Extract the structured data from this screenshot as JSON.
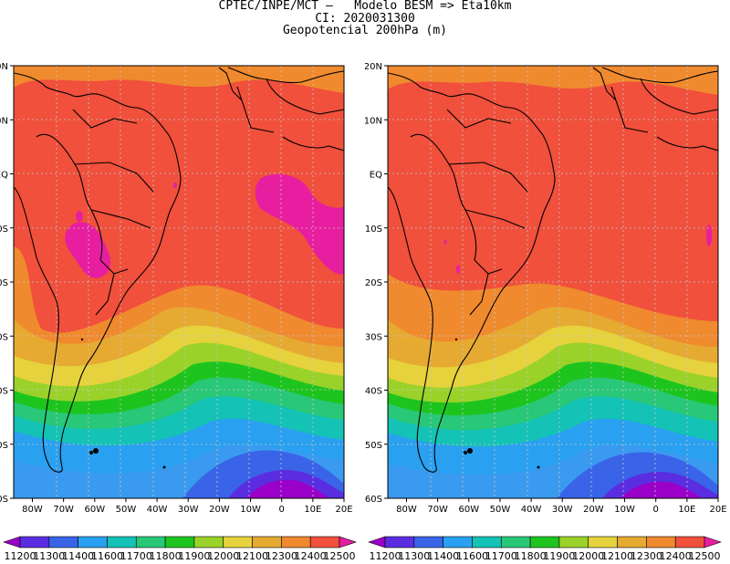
{
  "header": {
    "line1": "CPTEC/INPE/MCT –   Modelo BESM => Eta10km",
    "line2": "CI: 2020031300",
    "line3": "Geopotencial 200hPa (m)"
  },
  "axes": {
    "lon_labels": [
      "80W",
      "70W",
      "60W",
      "50W",
      "40W",
      "30W",
      "20W",
      "10W",
      "0",
      "10E",
      "20E"
    ],
    "lat_labels": [
      "20N",
      "10N",
      "EQ",
      "10S",
      "20S",
      "30S",
      "40S",
      "50S",
      "60S"
    ]
  },
  "colorbar": {
    "levels": [
      "11200",
      "11300",
      "11400",
      "11600",
      "11700",
      "11800",
      "11900",
      "12000",
      "12100",
      "12300",
      "12400",
      "12500"
    ],
    "colors": [
      "#9a00c8",
      "#5a2ee0",
      "#3a64e8",
      "#2aa0f0",
      "#14c2b6",
      "#28c878",
      "#1ec41e",
      "#9ad22a",
      "#e6d23c",
      "#e6aa32",
      "#f08a2e",
      "#f0503c",
      "#e81ea0"
    ]
  },
  "maps": [
    {
      "name": "left",
      "variant": "a"
    },
    {
      "name": "right",
      "variant": "b"
    }
  ]
}
